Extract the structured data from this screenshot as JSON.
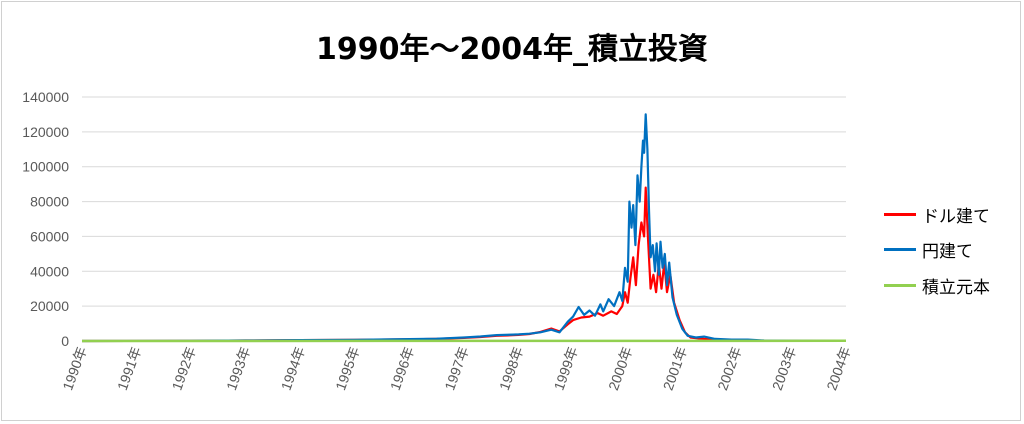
{
  "chart_data": {
    "type": "line",
    "title": "1990年～2004年_積立投資",
    "x_labels": [
      "1990年",
      "1991年",
      "1992年",
      "1993年",
      "1994年",
      "1995年",
      "1996年",
      "1997年",
      "1998年",
      "1999年",
      "2000年",
      "2001年",
      "2002年",
      "2003年",
      "2004年"
    ],
    "ylim": [
      0,
      140000
    ],
    "y_ticks": [
      0,
      20000,
      40000,
      60000,
      80000,
      100000,
      120000,
      140000
    ],
    "grid": true,
    "legend_position": "right",
    "series": [
      {
        "name": "ドル建て",
        "color": "#ff0000",
        "points": [
          [
            1990.0,
            0
          ],
          [
            1992.0,
            100
          ],
          [
            1993.0,
            300
          ],
          [
            1994.0,
            500
          ],
          [
            1995.0,
            700
          ],
          [
            1996.0,
            1000
          ],
          [
            1996.5,
            1200
          ],
          [
            1997.0,
            1800
          ],
          [
            1997.3,
            2300
          ],
          [
            1997.6,
            3000
          ],
          [
            1997.9,
            3300
          ],
          [
            1998.0,
            3500
          ],
          [
            1998.2,
            4000
          ],
          [
            1998.4,
            5200
          ],
          [
            1998.6,
            7200
          ],
          [
            1998.75,
            5500
          ],
          [
            1998.9,
            9500
          ],
          [
            1999.0,
            12000
          ],
          [
            1999.15,
            13500
          ],
          [
            1999.3,
            14000
          ],
          [
            1999.45,
            16000
          ],
          [
            1999.55,
            14500
          ],
          [
            1999.7,
            17000
          ],
          [
            1999.8,
            15500
          ],
          [
            1999.9,
            20000
          ],
          [
            1999.95,
            28000
          ],
          [
            2000.0,
            22000
          ],
          [
            2000.05,
            36000
          ],
          [
            2000.1,
            48000
          ],
          [
            2000.15,
            32000
          ],
          [
            2000.2,
            55000
          ],
          [
            2000.25,
            68000
          ],
          [
            2000.3,
            60000
          ],
          [
            2000.33,
            88000
          ],
          [
            2000.37,
            60000
          ],
          [
            2000.42,
            30000
          ],
          [
            2000.47,
            38000
          ],
          [
            2000.52,
            28000
          ],
          [
            2000.57,
            44000
          ],
          [
            2000.62,
            30000
          ],
          [
            2000.67,
            45000
          ],
          [
            2000.72,
            28000
          ],
          [
            2000.78,
            38000
          ],
          [
            2000.85,
            22000
          ],
          [
            2000.95,
            12000
          ],
          [
            2001.05,
            5000
          ],
          [
            2001.15,
            2000
          ],
          [
            2001.3,
            1500
          ],
          [
            2001.5,
            1000
          ],
          [
            2001.7,
            600
          ],
          [
            2002.0,
            400
          ],
          [
            2002.5,
            200
          ],
          [
            2003.0,
            100
          ],
          [
            2004.0,
            50
          ]
        ]
      },
      {
        "name": "円建て",
        "color": "#0070c0",
        "points": [
          [
            1990.0,
            0
          ],
          [
            1992.0,
            100
          ],
          [
            1993.0,
            300
          ],
          [
            1994.0,
            500
          ],
          [
            1995.0,
            700
          ],
          [
            1996.0,
            1100
          ],
          [
            1996.5,
            1300
          ],
          [
            1997.0,
            2000
          ],
          [
            1997.3,
            2600
          ],
          [
            1997.6,
            3400
          ],
          [
            1997.9,
            3700
          ],
          [
            1998.0,
            3800
          ],
          [
            1998.2,
            4200
          ],
          [
            1998.4,
            5000
          ],
          [
            1998.6,
            6500
          ],
          [
            1998.75,
            5000
          ],
          [
            1998.9,
            11000
          ],
          [
            1999.0,
            14000
          ],
          [
            1999.1,
            19500
          ],
          [
            1999.2,
            15000
          ],
          [
            1999.3,
            17500
          ],
          [
            1999.4,
            14500
          ],
          [
            1999.5,
            21000
          ],
          [
            1999.55,
            17000
          ],
          [
            1999.65,
            24000
          ],
          [
            1999.75,
            20000
          ],
          [
            1999.85,
            28000
          ],
          [
            1999.9,
            23000
          ],
          [
            1999.95,
            42000
          ],
          [
            2000.0,
            34000
          ],
          [
            2000.03,
            80000
          ],
          [
            2000.07,
            65000
          ],
          [
            2000.1,
            78000
          ],
          [
            2000.14,
            55000
          ],
          [
            2000.18,
            95000
          ],
          [
            2000.22,
            80000
          ],
          [
            2000.25,
            100000
          ],
          [
            2000.28,
            115000
          ],
          [
            2000.3,
            108000
          ],
          [
            2000.33,
            130000
          ],
          [
            2000.36,
            110000
          ],
          [
            2000.39,
            75000
          ],
          [
            2000.42,
            48000
          ],
          [
            2000.46,
            55000
          ],
          [
            2000.5,
            40000
          ],
          [
            2000.53,
            56000
          ],
          [
            2000.57,
            38000
          ],
          [
            2000.6,
            57000
          ],
          [
            2000.64,
            42000
          ],
          [
            2000.68,
            50000
          ],
          [
            2000.72,
            32000
          ],
          [
            2000.76,
            45000
          ],
          [
            2000.82,
            25000
          ],
          [
            2000.9,
            15000
          ],
          [
            2001.0,
            7000
          ],
          [
            2001.1,
            3000
          ],
          [
            2001.25,
            2000
          ],
          [
            2001.4,
            2500
          ],
          [
            2001.6,
            1200
          ],
          [
            2001.9,
            800
          ],
          [
            2002.2,
            800
          ],
          [
            2002.5,
            300
          ],
          [
            2003.0,
            150
          ],
          [
            2004.0,
            60
          ]
        ]
      },
      {
        "name": "積立元本",
        "color": "#92d050",
        "points": [
          [
            1990.0,
            0
          ],
          [
            2004.0,
            100
          ]
        ]
      }
    ]
  }
}
